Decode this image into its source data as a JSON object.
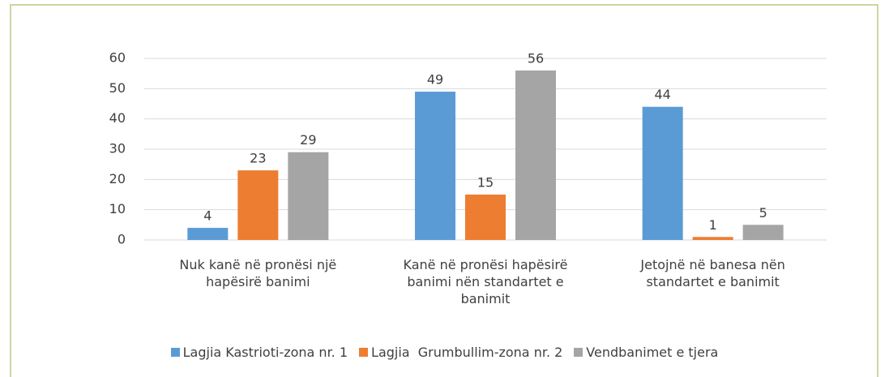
{
  "chart_data": {
    "type": "bar",
    "categories": [
      "Nuk kanë në pronësi një hapësirë banimi",
      "Kanë në pronësi hapësirë banimi nën standartet e banimit",
      "Jetojnë në banesa nën standartet e banimit"
    ],
    "series": [
      {
        "name": "Lagjia Kastrioti-zona nr. 1",
        "color": "#5b9bd5",
        "values": [
          4,
          49,
          44
        ]
      },
      {
        "name": "Lagjia  Grumbullim-zona nr. 2",
        "color": "#ed7d31",
        "values": [
          23,
          15,
          1
        ]
      },
      {
        "name": "Vendbanimet e tjera",
        "color": "#a5a5a5",
        "values": [
          29,
          56,
          5
        ]
      }
    ],
    "ylim": [
      0,
      60
    ],
    "yticks": [
      0,
      10,
      20,
      30,
      40,
      50,
      60
    ],
    "grid": true,
    "legend": "bottom"
  }
}
